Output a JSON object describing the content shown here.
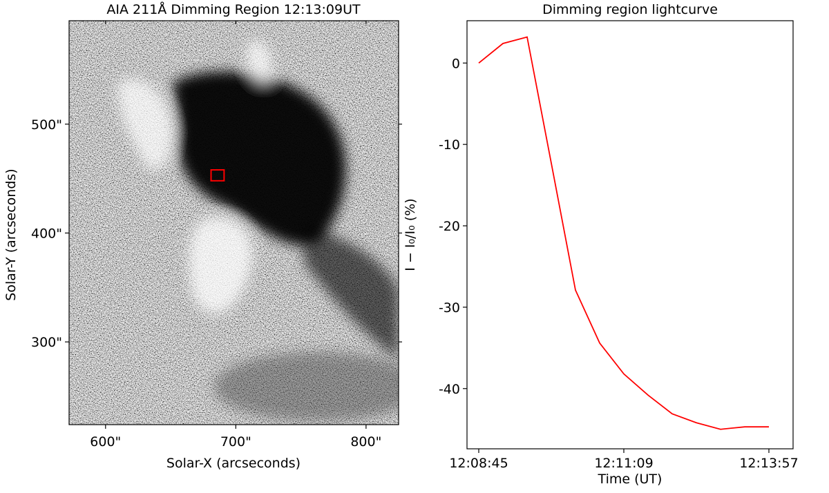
{
  "chart_data": [
    {
      "type": "image",
      "title": "AIA 211Å Dimming Region 12:13:09UT",
      "xlabel": "Solar-X (arcseconds)",
      "ylabel": "Solar-Y (arcseconds)",
      "xlim": [
        572,
        825
      ],
      "ylim": [
        224,
        595
      ],
      "xticks": [
        {
          "value": 600,
          "label": "600\""
        },
        {
          "value": 700,
          "label": "700\""
        },
        {
          "value": 800,
          "label": "800\""
        }
      ],
      "yticks": [
        {
          "value": 300,
          "label": "300\""
        },
        {
          "value": 400,
          "label": "400\""
        },
        {
          "value": 500,
          "label": "500\""
        }
      ],
      "box": {
        "x": [
          681,
          691
        ],
        "y": [
          448,
          458
        ],
        "color": "#ff0000"
      }
    },
    {
      "type": "line",
      "title": "Dimming region lightcurve",
      "xlabel": "Time (UT)",
      "ylabel": "I − I₀/I₀ (%)",
      "categories": [
        "12:08:45",
        null,
        null,
        null,
        null,
        null,
        "12:11:09",
        null,
        null,
        null,
        null,
        null,
        "12:13:57"
      ],
      "series": [
        {
          "name": "lightcurve",
          "color": "#ff0000",
          "values": [
            0,
            2.4,
            3.2,
            -12.3,
            -27.9,
            -34.4,
            -38.2,
            -40.8,
            -43.1,
            -44.2,
            -45.0,
            -44.7,
            -44.7
          ]
        }
      ],
      "ylim": [
        -47.4,
        5.2
      ],
      "yticks": [
        0,
        -10,
        -20,
        -30,
        -40
      ]
    }
  ]
}
